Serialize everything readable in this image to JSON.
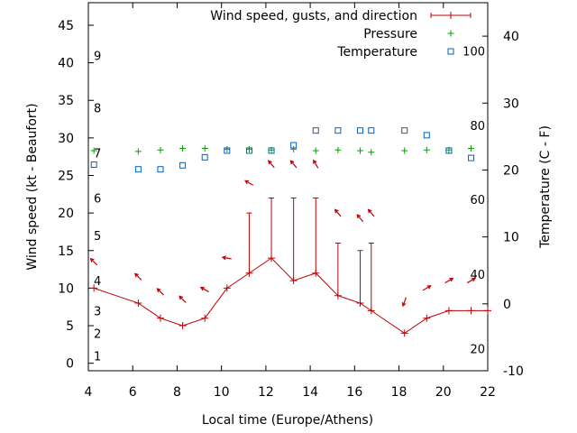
{
  "chart_data": {
    "type": "line",
    "xlabel": "Local time (Europe/Athens)",
    "ylabel_left": "Wind speed (kt - Beaufort)",
    "ylabel_right": "Temperature (C - F)",
    "xlim": [
      4,
      22
    ],
    "x_ticks": [
      4,
      6,
      8,
      10,
      12,
      14,
      16,
      18,
      20,
      22
    ],
    "ylim_left": [
      -1,
      48
    ],
    "y_ticks_left": [
      0,
      5,
      10,
      15,
      20,
      25,
      30,
      35,
      40,
      45
    ],
    "ylim_right": [
      -10,
      45
    ],
    "y_ticks_right": [
      -10,
      0,
      10,
      20,
      30,
      40
    ],
    "fahrenheit_labels": [
      {
        "label": "20",
        "c": -6.7
      },
      {
        "label": "40",
        "c": 4.4
      },
      {
        "label": "60",
        "c": 15.6
      },
      {
        "label": "80",
        "c": 26.7
      },
      {
        "label": "100",
        "c": 37.8
      }
    ],
    "beaufort_labels": [
      {
        "label": "1",
        "kt": 1
      },
      {
        "label": "2",
        "kt": 4
      },
      {
        "label": "3",
        "kt": 7
      },
      {
        "label": "4",
        "kt": 11
      },
      {
        "label": "5",
        "kt": 17
      },
      {
        "label": "6",
        "kt": 22
      },
      {
        "label": "7",
        "kt": 28
      },
      {
        "label": "8",
        "kt": 34
      },
      {
        "label": "9",
        "kt": 41
      }
    ],
    "legend": [
      {
        "label": "Wind speed, gusts, and direction",
        "symbol": "errorbar",
        "color": "#c00000"
      },
      {
        "label": "Pressure",
        "symbol": "plus",
        "color": "#00a000"
      },
      {
        "label": "Temperature",
        "symbol": "square",
        "color": "#0060c0"
      }
    ],
    "series": [
      {
        "name": "Wind speed, gusts, and direction",
        "axis": "left",
        "color": "#c00000",
        "x": [
          4.25,
          6.25,
          7.25,
          8.25,
          9.25,
          10.25,
          11.25,
          12.25,
          13.25,
          14.25,
          15.25,
          16.25,
          16.75,
          18.25,
          19.25,
          20.25,
          21.25,
          22
        ],
        "y": [
          10,
          8,
          6,
          5,
          6,
          10,
          12,
          14,
          11,
          12,
          9,
          8,
          7,
          4,
          6,
          7,
          7,
          7
        ],
        "gusts": [
          null,
          null,
          null,
          null,
          null,
          null,
          20,
          22,
          22,
          22,
          16,
          15,
          16,
          null,
          null,
          null,
          null,
          null
        ],
        "direction_arrow_y": [
          13.5,
          11.5,
          9.5,
          8.5,
          9.8,
          14,
          24,
          26.5,
          26.5,
          26.5,
          20,
          19.3,
          20,
          8.2,
          10,
          11,
          11,
          null
        ],
        "direction_deg": [
          315,
          315,
          315,
          315,
          300,
          280,
          300,
          320,
          320,
          330,
          320,
          320,
          320,
          200,
          60,
          60,
          60,
          null
        ]
      },
      {
        "name": "Pressure",
        "axis": "left",
        "color": "#00a000",
        "x": [
          4.25,
          6.25,
          7.25,
          8.25,
          9.25,
          10.25,
          11.25,
          12.25,
          13.25,
          14.25,
          15.25,
          16.25,
          16.75,
          18.25,
          19.25,
          20.25,
          21.25
        ],
        "y": [
          28.3,
          28.2,
          28.4,
          28.6,
          28.6,
          28.5,
          28.5,
          28.4,
          28.5,
          28.3,
          28.4,
          28.3,
          28.1,
          28.3,
          28.4,
          28.4,
          28.6
        ]
      },
      {
        "name": "Temperature",
        "axis": "right",
        "color": "#0060c0",
        "x": [
          4.25,
          6.25,
          7.25,
          8.25,
          9.25,
          10.25,
          11.25,
          12.25,
          13.25,
          14.25,
          15.25,
          16.25,
          16.75,
          18.25,
          19.25,
          20.25,
          21.25
        ],
        "y": [
          20.8,
          20.1,
          20.1,
          20.7,
          21.9,
          22.9,
          22.9,
          22.9,
          23.7,
          25.9,
          25.9,
          25.9,
          25.9,
          25.9,
          25.2,
          22.9,
          21.8
        ]
      }
    ]
  }
}
